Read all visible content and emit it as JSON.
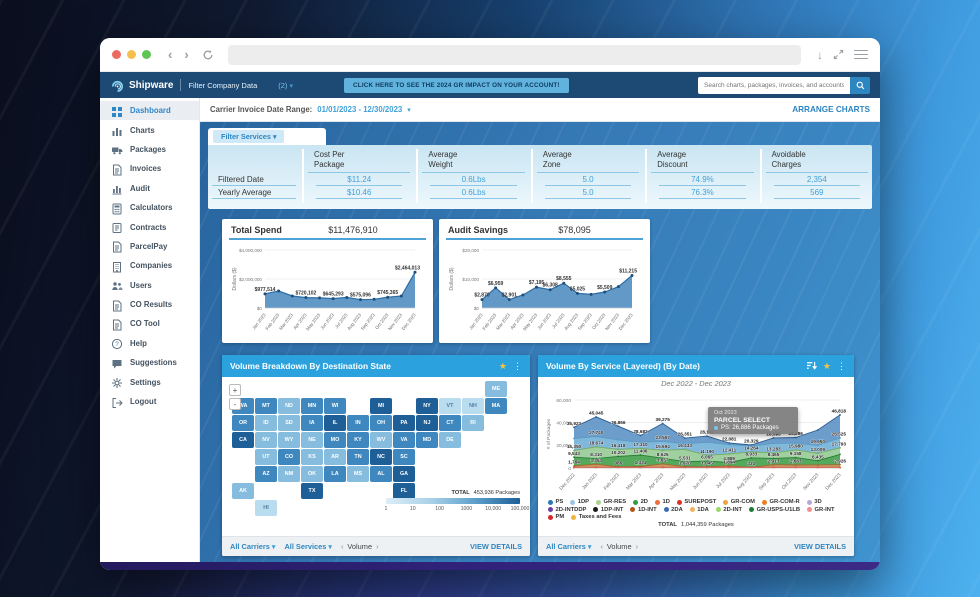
{
  "browser": {
    "url": ""
  },
  "header": {
    "brand": "Shipware",
    "filter_label": "Filter Company Data",
    "filter_count": "(2)",
    "cta": "CLICK HERE TO SEE THE 2024 GR IMPACT ON YOUR ACCOUNT!",
    "search_placeholder": "Search charts, packages, invoices, and accounts"
  },
  "sidebar": {
    "items": [
      {
        "label": "Dashboard",
        "icon": "grid-icon",
        "active": true
      },
      {
        "label": "Charts",
        "icon": "bar-chart-icon"
      },
      {
        "label": "Packages",
        "icon": "truck-icon"
      },
      {
        "label": "Invoices",
        "icon": "document-icon"
      },
      {
        "label": "Audit",
        "icon": "audit-bars-icon"
      },
      {
        "label": "Calculators",
        "icon": "calculator-icon"
      },
      {
        "label": "Contracts",
        "icon": "contract-icon"
      },
      {
        "label": "ParcelPay",
        "icon": "document-icon"
      },
      {
        "label": "Companies",
        "icon": "building-icon"
      },
      {
        "label": "Users",
        "icon": "users-icon"
      },
      {
        "label": "CO Results",
        "icon": "document-icon"
      },
      {
        "label": "CO Tool",
        "icon": "document-icon"
      },
      {
        "label": "Help",
        "icon": "help-icon"
      },
      {
        "label": "Suggestions",
        "icon": "comment-icon"
      },
      {
        "label": "Settings",
        "icon": "gear-icon"
      },
      {
        "label": "Logout",
        "icon": "logout-icon"
      }
    ]
  },
  "topbar": {
    "date_range_label": "Carrier Invoice Date Range:",
    "date_range": "01/01/2023 - 12/30/2023",
    "arrange": "ARRANGE CHARTS"
  },
  "filters": {
    "services_label": "Filter Services"
  },
  "kpi": {
    "row_labels": [
      "Filtered Date",
      "Yearly Average"
    ],
    "columns": [
      {
        "title_line1": "Cost Per",
        "title_line2": "Package",
        "filtered": "$11.24",
        "yearly": "$10.46"
      },
      {
        "title_line1": "Average",
        "title_line2": "Weight",
        "filtered": "0.6Lbs",
        "yearly": "0.6Lbs"
      },
      {
        "title_line1": "Average",
        "title_line2": "Zone",
        "filtered": "5.0",
        "yearly": "5.0"
      },
      {
        "title_line1": "Average",
        "title_line2": "Discount",
        "filtered": "74.9%",
        "yearly": "76.3%"
      },
      {
        "title_line1": "Avoidable",
        "title_line2": "Charges",
        "filtered": "2,354",
        "yearly": "569"
      }
    ]
  },
  "cards": {
    "spend": {
      "title": "Total Spend",
      "total": "$11,476,910"
    },
    "audit": {
      "title": "Audit Savings",
      "total": "$78,095"
    },
    "map": {
      "title": "Volume Breakdown By Destination State",
      "total_label": "TOTAL",
      "total_value": "453,936 Packages",
      "zoom_in": "+",
      "zoom_out": "-",
      "footer": {
        "carriers": "All Carriers",
        "services": "All Services",
        "metric": "Volume",
        "details": "VIEW DETAILS"
      }
    },
    "service": {
      "title": "Volume By Service (Layered) (By Date)",
      "subtitle": "Dec 2022 - Dec 2023",
      "tooltip": {
        "date": "Oct 2023",
        "service": "PARCEL SELECT",
        "value": "PS: 26,886 Packages"
      },
      "total_label": "TOTAL",
      "total_value": "1,044,359 Packages",
      "legend": [
        {
          "name": "PS",
          "color": "#2e75b6"
        },
        {
          "name": "1DP",
          "color": "#9dc3e6"
        },
        {
          "name": "GR-RES",
          "color": "#a9d18e"
        },
        {
          "name": "2D",
          "color": "#2f9e41"
        },
        {
          "name": "1D",
          "color": "#f06d3a"
        },
        {
          "name": "SUREPOST",
          "color": "#e0301e"
        },
        {
          "name": "GR-COM",
          "color": "#f2a33a"
        },
        {
          "name": "GR-COM-R",
          "color": "#ef7d22"
        },
        {
          "name": "3D",
          "color": "#b8a8d9"
        },
        {
          "name": "2D-INTDDP",
          "color": "#6a3fa0"
        },
        {
          "name": "1DP-INT",
          "color": "#1a1a1a"
        },
        {
          "name": "1D-INT",
          "color": "#b35418"
        },
        {
          "name": "2DA",
          "color": "#3b6bb5"
        },
        {
          "name": "1DA",
          "color": "#f0b35f"
        },
        {
          "name": "2D-INT",
          "color": "#9fd66b"
        },
        {
          "name": "GR-USPS-U1LB",
          "color": "#1e7a34"
        },
        {
          "name": "GR-INT",
          "color": "#ef8f8f"
        },
        {
          "name": "PM",
          "color": "#d42a2a"
        },
        {
          "name": "Taxes and Fees",
          "color": "#f2b33d"
        }
      ],
      "footer": {
        "carriers": "All Carriers",
        "metric": "Volume",
        "details": "VIEW DETAILS"
      }
    }
  },
  "chart_data": [
    {
      "id": "total-spend",
      "type": "area",
      "title": "Total Spend",
      "ylabel": "Dollars ($)",
      "ymax": 4000000,
      "yticks": [
        "$0",
        "$2,000,000",
        "$4,000,000"
      ],
      "x": [
        "Jan 2023",
        "Feb 2023",
        "Mar 2023",
        "Apr 2023",
        "May 2023",
        "Jun 2023",
        "Jul 2023",
        "Aug 2023",
        "Sep 2023",
        "Oct 2023",
        "Nov 2023",
        "Dec 2023"
      ],
      "values": [
        977514,
        1175000,
        830000,
        720102,
        698000,
        645293,
        728000,
        575096,
        601000,
        745365,
        829000,
        2464013
      ],
      "point_labels": {
        "0": "$977,514",
        "3": "$720,102",
        "5": "$645,293",
        "7": "$575,096",
        "9": "$745,365",
        "11": "$2,464,013"
      }
    },
    {
      "id": "audit-savings",
      "type": "area",
      "title": "Audit Savings",
      "ylabel": "Dollars ($)",
      "ymax": 20000,
      "yticks": [
        "$0",
        "$10,000",
        "$20,000"
      ],
      "x": [
        "Jan 2023",
        "Feb 2023",
        "Mar 2023",
        "Apr 2023",
        "May 2023",
        "Jun 2023",
        "Jul 2023",
        "Aug 2023",
        "Sep 2023",
        "Oct 2023",
        "Nov 2023",
        "Dec 2023"
      ],
      "values": [
        2870,
        6959,
        2901,
        4500,
        7195,
        6308,
        8555,
        5025,
        4700,
        5509,
        7358,
        11215
      ],
      "point_labels": {
        "0": "$2,870",
        "1": "$6,959",
        "2": "$2,901",
        "4": "$7,195",
        "5": "$6,308",
        "6": "$8,555",
        "7": "$5,025",
        "9": "$5,509",
        "11": "$11,215"
      }
    },
    {
      "id": "volume-by-service",
      "type": "layered-area",
      "title": "Volume By Service (Layered) (By Date)",
      "ylabel": "# of Packages",
      "ymax": 60000,
      "yticks": [
        "0",
        "20,000",
        "40,000",
        "60,000"
      ],
      "x": [
        "Dec 2022",
        "Jan 2023",
        "Feb 2023",
        "Mar 2023",
        "Apr 2023",
        "May 2023",
        "Jun 2023",
        "Jul 2023",
        "Aug 2023",
        "Sep 2023",
        "Oct 2023",
        "Nov 2023",
        "Dec 2023"
      ],
      "series": [
        {
          "name": "PS",
          "color": "#4c88c0",
          "stroke": "#2a5d92",
          "values": [
            35923,
            45045,
            36866,
            28682,
            39275,
            26351,
            28141,
            22081,
            20329,
            26595,
            26886,
            33500,
            46818
          ],
          "labels": {
            "0": "35,923",
            "1": "45,045",
            "2": "36,866",
            "3": "28,682",
            "4": "39,275",
            "5": "26,351",
            "6": "28,141",
            "7": "22,081",
            "8": "20,329",
            "9": "26,595",
            "10": "26,886",
            "12": "46,818"
          }
        },
        {
          "name": "1DP",
          "color": "#85bede",
          "stroke": "#5b9cc4",
          "values": [
            26000,
            27740,
            24800,
            22600,
            23567,
            21300,
            22800,
            20600,
            19300,
            21700,
            22100,
            19950,
            26525
          ],
          "labels": {
            "1": "27,740",
            "4": "23,567",
            "11": "19,950",
            "12": "26,525"
          }
        },
        {
          "name": "GR-RES",
          "color": "#a8d593",
          "stroke": "#76ab60",
          "values": [
            15350,
            18674,
            16418,
            17310,
            15694,
            16433,
            11190,
            12411,
            14264,
            13283,
            15980,
            13009,
            17793
          ],
          "labels": {
            "0": "15,350",
            "1": "18,674",
            "2": "16,418",
            "3": "17,310",
            "4": "15,694",
            "5": "16,433",
            "6": "11,190",
            "7": "12,411",
            "8": "14,264",
            "9": "13,283",
            "10": "15,980",
            "11": "13,009",
            "12": "17,793"
          }
        },
        {
          "name": "2D",
          "color": "#44a04e",
          "stroke": "#2b7d36",
          "values": [
            9543,
            8310,
            10202,
            11406,
            8625,
            5531,
            6065,
            4889,
            8933,
            8465,
            9158,
            6435,
            12000
          ],
          "labels": {
            "0": "9,543",
            "1": "8,310",
            "2": "10,202",
            "3": "11,406",
            "4": "8,625",
            "5": "5,531",
            "6": "6,065",
            "7": "4,889",
            "8": "8,933",
            "9": "8,465",
            "10": "9,158",
            "11": "6,435"
          }
        },
        {
          "name": "1D",
          "color": "#e09a66",
          "stroke": "#aa6630",
          "values": [
            1784,
            3353,
            986,
            1331,
            3657,
            1070,
            1045,
            1894,
            331,
            2913,
            2663,
            2700,
            2926
          ],
          "labels": {
            "0": "1,784",
            "1": "3,353",
            "2": "986",
            "3": "1,331",
            "4": "3,657",
            "5": "1,070",
            "6": "1,045",
            "7": "1,894",
            "8": "331",
            "9": "2,913",
            "10": "2,663",
            "12": "2,926"
          }
        },
        {
          "name": "Taxes and Fees",
          "color": "#f4b13e",
          "stroke": "#d8991c",
          "values": [
            280,
            280,
            280,
            280,
            280,
            280,
            280,
            280,
            280,
            280,
            280,
            280,
            280
          ],
          "labels": {}
        },
        {
          "name": "SUREPOST",
          "color": "#e0301e",
          "stroke": "#e0301e",
          "render": "line",
          "values": [
            550,
            550,
            550,
            550,
            550,
            550,
            550,
            550,
            550,
            550,
            550,
            550,
            550
          ],
          "labels": {}
        }
      ]
    },
    {
      "id": "volume-map",
      "type": "choropleth",
      "scale_ticks": [
        "1",
        "10",
        "100",
        "1000",
        "10,000",
        "100,000"
      ],
      "states": [
        {
          "abbr": "ME",
          "col": 11,
          "row": 0,
          "shade": "l"
        },
        {
          "abbr": "WA",
          "col": 0,
          "row": 1,
          "shade": "m"
        },
        {
          "abbr": "MT",
          "col": 1,
          "row": 1,
          "shade": "m"
        },
        {
          "abbr": "ND",
          "col": 2,
          "row": 1,
          "shade": "l"
        },
        {
          "abbr": "MN",
          "col": 3,
          "row": 1,
          "shade": "m"
        },
        {
          "abbr": "WI",
          "col": 4,
          "row": 1,
          "shade": "m"
        },
        {
          "abbr": "MI",
          "col": 6,
          "row": 1,
          "shade": "d"
        },
        {
          "abbr": "NY",
          "col": 8,
          "row": 1,
          "shade": "d"
        },
        {
          "abbr": "VT",
          "col": 9,
          "row": 1,
          "shade": "xl"
        },
        {
          "abbr": "NH",
          "col": 10,
          "row": 1,
          "shade": "xl"
        },
        {
          "abbr": "MA",
          "col": 11,
          "row": 1,
          "shade": "m"
        },
        {
          "abbr": "OR",
          "col": 0,
          "row": 2,
          "shade": "m"
        },
        {
          "abbr": "ID",
          "col": 1,
          "row": 2,
          "shade": "l"
        },
        {
          "abbr": "SD",
          "col": 2,
          "row": 2,
          "shade": "l"
        },
        {
          "abbr": "IA",
          "col": 3,
          "row": 2,
          "shade": "m"
        },
        {
          "abbr": "IL",
          "col": 4,
          "row": 2,
          "shade": "d"
        },
        {
          "abbr": "IN",
          "col": 5,
          "row": 2,
          "shade": "m"
        },
        {
          "abbr": "OH",
          "col": 6,
          "row": 2,
          "shade": "m"
        },
        {
          "abbr": "PA",
          "col": 7,
          "row": 2,
          "shade": "d"
        },
        {
          "abbr": "NJ",
          "col": 8,
          "row": 2,
          "shade": "d"
        },
        {
          "abbr": "CT",
          "col": 9,
          "row": 2,
          "shade": "m"
        },
        {
          "abbr": "RI",
          "col": 10,
          "row": 2,
          "shade": "l"
        },
        {
          "abbr": "CA",
          "col": 0,
          "row": 3,
          "shade": "d"
        },
        {
          "abbr": "NV",
          "col": 1,
          "row": 3,
          "shade": "l"
        },
        {
          "abbr": "WY",
          "col": 2,
          "row": 3,
          "shade": "l"
        },
        {
          "abbr": "NE",
          "col": 3,
          "row": 3,
          "shade": "l"
        },
        {
          "abbr": "MO",
          "col": 4,
          "row": 3,
          "shade": "m"
        },
        {
          "abbr": "KY",
          "col": 5,
          "row": 3,
          "shade": "m"
        },
        {
          "abbr": "WV",
          "col": 6,
          "row": 3,
          "shade": "l"
        },
        {
          "abbr": "VA",
          "col": 7,
          "row": 3,
          "shade": "m"
        },
        {
          "abbr": "MD",
          "col": 8,
          "row": 3,
          "shade": "m"
        },
        {
          "abbr": "DE",
          "col": 9,
          "row": 3,
          "shade": "l"
        },
        {
          "abbr": "UT",
          "col": 1,
          "row": 4,
          "shade": "l"
        },
        {
          "abbr": "CO",
          "col": 2,
          "row": 4,
          "shade": "m"
        },
        {
          "abbr": "KS",
          "col": 3,
          "row": 4,
          "shade": "l"
        },
        {
          "abbr": "AR",
          "col": 4,
          "row": 4,
          "shade": "l"
        },
        {
          "abbr": "TN",
          "col": 5,
          "row": 4,
          "shade": "m"
        },
        {
          "abbr": "NC",
          "col": 6,
          "row": 4,
          "shade": "d"
        },
        {
          "abbr": "SC",
          "col": 7,
          "row": 4,
          "shade": "m"
        },
        {
          "abbr": "AZ",
          "col": 1,
          "row": 5,
          "shade": "m"
        },
        {
          "abbr": "NM",
          "col": 2,
          "row": 5,
          "shade": "l"
        },
        {
          "abbr": "OK",
          "col": 3,
          "row": 5,
          "shade": "l"
        },
        {
          "abbr": "LA",
          "col": 4,
          "row": 5,
          "shade": "m"
        },
        {
          "abbr": "MS",
          "col": 5,
          "row": 5,
          "shade": "l"
        },
        {
          "abbr": "AL",
          "col": 6,
          "row": 5,
          "shade": "m"
        },
        {
          "abbr": "GA",
          "col": 7,
          "row": 5,
          "shade": "d"
        },
        {
          "abbr": "AK",
          "col": 0,
          "row": 6,
          "shade": "l"
        },
        {
          "abbr": "TX",
          "col": 3,
          "row": 6,
          "shade": "d"
        },
        {
          "abbr": "FL",
          "col": 7,
          "row": 6,
          "shade": "d"
        },
        {
          "abbr": "HI",
          "col": 1,
          "row": 7,
          "shade": "xl"
        }
      ]
    }
  ]
}
